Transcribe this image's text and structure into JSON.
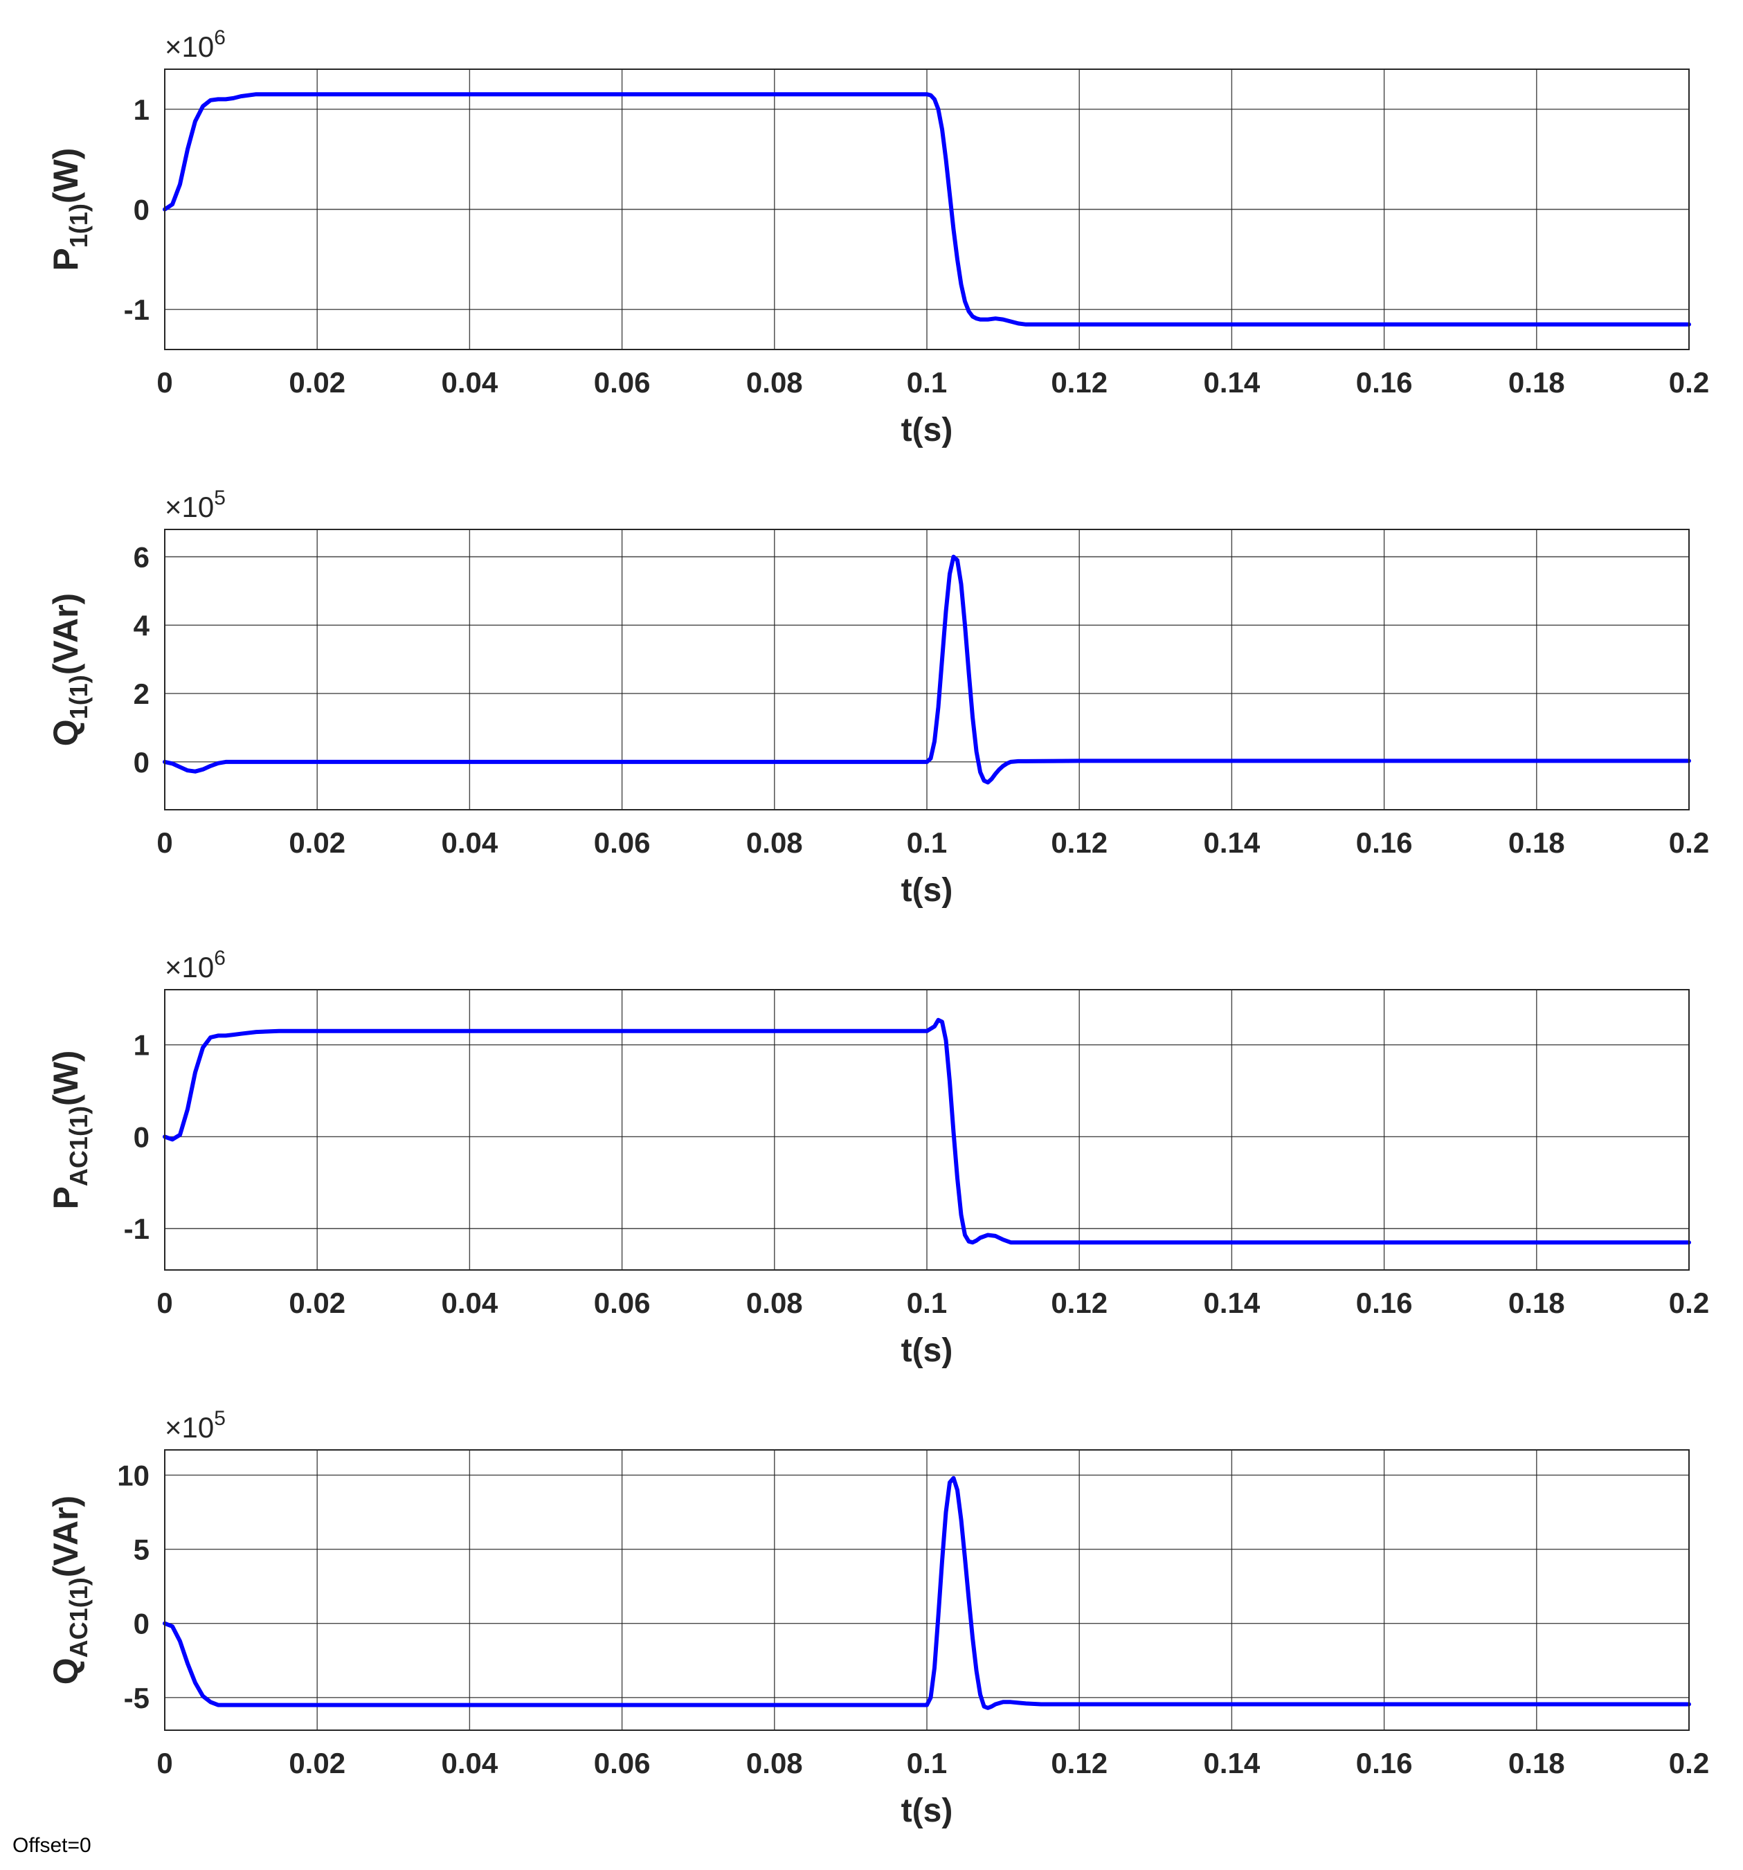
{
  "footer": {
    "offset_label": "Offset=0"
  },
  "colors": {
    "line": "#0000ff",
    "grid": "#262626",
    "axis": "#262626",
    "text": "#262626"
  },
  "chart_data": [
    {
      "type": "line",
      "ylabel": {
        "base": "P",
        "sub": "1(1)",
        "unit": "(W)"
      },
      "xlabel": "t(s)",
      "exponent": "6",
      "xlim": [
        0,
        0.2
      ],
      "ylim": [
        -1.4,
        1.4
      ],
      "xticks": [
        0,
        0.02,
        0.04,
        0.06,
        0.08,
        0.1,
        0.12,
        0.14,
        0.16,
        0.18,
        0.2
      ],
      "xtick_labels": [
        "0",
        "0.02",
        "0.04",
        "0.06",
        "0.08",
        "0.1",
        "0.12",
        "0.14",
        "0.16",
        "0.18",
        "0.2"
      ],
      "yticks": [
        -1,
        0,
        1
      ],
      "ytick_labels": [
        "-1",
        "0",
        "1"
      ],
      "grid": true,
      "series": [
        {
          "x": [
            0,
            0.001,
            0.002,
            0.003,
            0.004,
            0.005,
            0.006,
            0.007,
            0.008,
            0.009,
            0.01,
            0.012,
            0.015,
            0.02,
            0.05,
            0.08,
            0.099,
            0.1,
            0.1005,
            0.101,
            0.1015,
            0.102,
            0.1025,
            0.103,
            0.1035,
            0.104,
            0.1045,
            0.105,
            0.1055,
            0.106,
            0.1065,
            0.107,
            0.108,
            0.109,
            0.11,
            0.111,
            0.112,
            0.113,
            0.115,
            0.12,
            0.15,
            0.2
          ],
          "y": [
            0,
            0.05,
            0.25,
            0.6,
            0.88,
            1.03,
            1.09,
            1.1,
            1.1,
            1.11,
            1.13,
            1.15,
            1.15,
            1.15,
            1.15,
            1.15,
            1.15,
            1.15,
            1.14,
            1.1,
            1.0,
            0.8,
            0.5,
            0.15,
            -0.2,
            -0.5,
            -0.75,
            -0.92,
            -1.02,
            -1.07,
            -1.09,
            -1.1,
            -1.1,
            -1.09,
            -1.1,
            -1.12,
            -1.14,
            -1.15,
            -1.15,
            -1.15,
            -1.15,
            -1.15
          ]
        }
      ]
    },
    {
      "type": "line",
      "ylabel": {
        "base": "Q",
        "sub": "1(1)",
        "unit": "(VAr)"
      },
      "xlabel": "t(s)",
      "exponent": "5",
      "xlim": [
        0,
        0.2
      ],
      "ylim": [
        -1.4,
        6.8
      ],
      "xticks": [
        0,
        0.02,
        0.04,
        0.06,
        0.08,
        0.1,
        0.12,
        0.14,
        0.16,
        0.18,
        0.2
      ],
      "xtick_labels": [
        "0",
        "0.02",
        "0.04",
        "0.06",
        "0.08",
        "0.1",
        "0.12",
        "0.14",
        "0.16",
        "0.18",
        "0.2"
      ],
      "yticks": [
        0,
        2,
        4,
        6
      ],
      "ytick_labels": [
        "0",
        "2",
        "4",
        "6"
      ],
      "grid": true,
      "series": [
        {
          "x": [
            0,
            0.001,
            0.002,
            0.003,
            0.004,
            0.005,
            0.006,
            0.007,
            0.008,
            0.009,
            0.01,
            0.05,
            0.1,
            0.1005,
            0.101,
            0.1015,
            0.102,
            0.1025,
            0.103,
            0.1035,
            0.104,
            0.1045,
            0.105,
            0.1055,
            0.106,
            0.1065,
            0.107,
            0.1075,
            0.108,
            0.1085,
            0.109,
            0.1095,
            0.11,
            0.1105,
            0.111,
            0.112,
            0.113,
            0.12,
            0.2
          ],
          "y": [
            0,
            -0.05,
            -0.15,
            -0.25,
            -0.28,
            -0.22,
            -0.12,
            -0.04,
            0.0,
            0.0,
            0.0,
            0.0,
            0.0,
            0.1,
            0.6,
            1.6,
            3.0,
            4.4,
            5.5,
            6.0,
            5.9,
            5.2,
            4.0,
            2.6,
            1.3,
            0.3,
            -0.3,
            -0.55,
            -0.6,
            -0.5,
            -0.35,
            -0.22,
            -0.12,
            -0.05,
            0.0,
            0.02,
            0.02,
            0.03,
            0.03
          ]
        }
      ]
    },
    {
      "type": "line",
      "ylabel": {
        "base": "P",
        "sub": "AC1(1)",
        "unit": "(W)"
      },
      "xlabel": "t(s)",
      "exponent": "6",
      "xlim": [
        0,
        0.2
      ],
      "ylim": [
        -1.45,
        1.6
      ],
      "xticks": [
        0,
        0.02,
        0.04,
        0.06,
        0.08,
        0.1,
        0.12,
        0.14,
        0.16,
        0.18,
        0.2
      ],
      "xtick_labels": [
        "0",
        "0.02",
        "0.04",
        "0.06",
        "0.08",
        "0.1",
        "0.12",
        "0.14",
        "0.16",
        "0.18",
        "0.2"
      ],
      "yticks": [
        -1,
        0,
        1
      ],
      "ytick_labels": [
        "-1",
        "0",
        "1"
      ],
      "grid": true,
      "series": [
        {
          "x": [
            0,
            0.001,
            0.002,
            0.003,
            0.004,
            0.005,
            0.006,
            0.007,
            0.008,
            0.009,
            0.01,
            0.012,
            0.015,
            0.02,
            0.05,
            0.08,
            0.1,
            0.101,
            0.1015,
            0.102,
            0.1025,
            0.103,
            0.1035,
            0.104,
            0.1045,
            0.105,
            0.1055,
            0.106,
            0.1065,
            0.107,
            0.108,
            0.109,
            0.11,
            0.111,
            0.112,
            0.113,
            0.115,
            0.12,
            0.2
          ],
          "y": [
            0,
            -0.03,
            0.02,
            0.3,
            0.7,
            0.97,
            1.08,
            1.1,
            1.1,
            1.11,
            1.12,
            1.14,
            1.15,
            1.15,
            1.15,
            1.15,
            1.15,
            1.2,
            1.27,
            1.25,
            1.05,
            0.6,
            0.05,
            -0.45,
            -0.85,
            -1.07,
            -1.14,
            -1.15,
            -1.13,
            -1.1,
            -1.07,
            -1.08,
            -1.12,
            -1.15,
            -1.15,
            -1.15,
            -1.15,
            -1.15,
            -1.15
          ]
        }
      ]
    },
    {
      "type": "line",
      "ylabel": {
        "base": "Q",
        "sub": "AC1(1)",
        "unit": "(VAr)"
      },
      "xlabel": "t(s)",
      "exponent": "5",
      "xlim": [
        0,
        0.2
      ],
      "ylim": [
        -7.2,
        11.7
      ],
      "xticks": [
        0,
        0.02,
        0.04,
        0.06,
        0.08,
        0.1,
        0.12,
        0.14,
        0.16,
        0.18,
        0.2
      ],
      "xtick_labels": [
        "0",
        "0.02",
        "0.04",
        "0.06",
        "0.08",
        "0.1",
        "0.12",
        "0.14",
        "0.16",
        "0.18",
        "0.2"
      ],
      "yticks": [
        -5,
        0,
        5,
        10
      ],
      "ytick_labels": [
        "-5",
        "0",
        "5",
        "10"
      ],
      "grid": true,
      "series": [
        {
          "x": [
            0,
            0.001,
            0.002,
            0.003,
            0.004,
            0.005,
            0.006,
            0.007,
            0.008,
            0.009,
            0.01,
            0.05,
            0.1,
            0.1005,
            0.101,
            0.1015,
            0.102,
            0.1025,
            0.103,
            0.1035,
            0.104,
            0.1045,
            0.105,
            0.1055,
            0.106,
            0.1065,
            0.107,
            0.1075,
            0.108,
            0.1085,
            0.109,
            0.11,
            0.111,
            0.112,
            0.113,
            0.115,
            0.12,
            0.2
          ],
          "y": [
            0,
            -0.2,
            -1.2,
            -2.7,
            -4.0,
            -4.9,
            -5.3,
            -5.5,
            -5.5,
            -5.5,
            -5.5,
            -5.5,
            -5.5,
            -5.0,
            -3.0,
            0.5,
            4.2,
            7.5,
            9.5,
            9.8,
            9.0,
            7.0,
            4.4,
            1.6,
            -1.0,
            -3.2,
            -4.8,
            -5.6,
            -5.7,
            -5.6,
            -5.45,
            -5.3,
            -5.3,
            -5.35,
            -5.4,
            -5.45,
            -5.45,
            -5.45
          ]
        }
      ]
    }
  ]
}
